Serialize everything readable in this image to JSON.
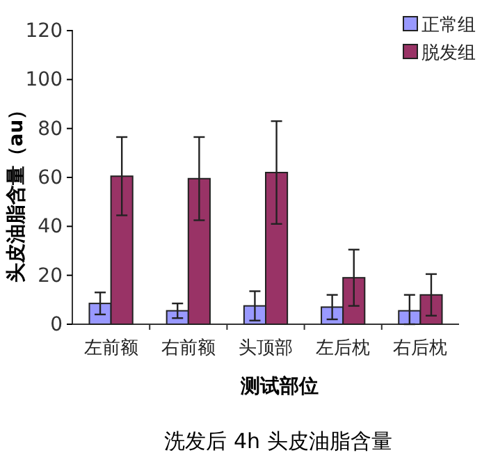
{
  "chart_data": {
    "type": "bar",
    "title": "洗发后 4h 头皮油脂含量",
    "xlabel": "测试部位",
    "ylabel": "头皮油脂含量（au）",
    "categories": [
      "左前额",
      "右前额",
      "头顶部",
      "左后枕",
      "右后枕"
    ],
    "series": [
      {
        "name": "正常组",
        "color": "#9999ff",
        "values": [
          8.5,
          5.5,
          7.5,
          7,
          5.5
        ],
        "errors": [
          4.5,
          3,
          6,
          5,
          [
            0,
            12
          ]
        ]
      },
      {
        "name": "脱发组",
        "color": "#993366",
        "values": [
          60.5,
          59.5,
          62,
          19,
          12
        ],
        "errors": [
          16,
          17,
          21,
          11.5,
          8.5
        ]
      }
    ],
    "ylim": [
      0,
      120
    ],
    "yticks": [
      0,
      20,
      40,
      60,
      80,
      100,
      120
    ],
    "legend": "top right"
  }
}
